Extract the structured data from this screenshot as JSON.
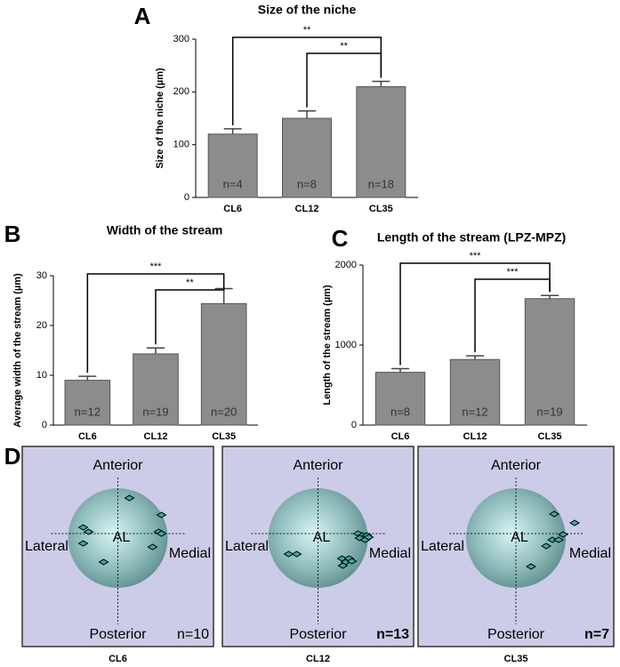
{
  "chart_data": [
    {
      "type": "bar",
      "panel": "A",
      "title": "Size of the niche",
      "y_label": "Size of the niche (µm)",
      "categories": [
        "CL6",
        "CL12",
        "CL35"
      ],
      "values": [
        120,
        150,
        210
      ],
      "errors": [
        10,
        14,
        10
      ],
      "bar_labels": [
        "n=4",
        "n=8",
        "n=18"
      ],
      "significance": [
        "**",
        "**"
      ],
      "color": "#8c8c8c",
      "ylim": [
        0,
        300
      ],
      "yticks": [
        0,
        100,
        200,
        300
      ]
    },
    {
      "type": "bar",
      "panel": "B",
      "title": "Width of the stream",
      "y_label": "Average width of the stream (µm)",
      "categories": [
        "CL6",
        "CL12",
        "CL35"
      ],
      "values": [
        9,
        14.3,
        24.4
      ],
      "errors": [
        0.8,
        1.2,
        3.0
      ],
      "bar_labels": [
        "n=12",
        "n=19",
        "n=20"
      ],
      "significance": [
        "***",
        "**"
      ],
      "color": "#8c8c8c",
      "ylim": [
        0,
        30
      ],
      "yticks": [
        0,
        10,
        20,
        30
      ]
    },
    {
      "type": "bar",
      "panel": "C",
      "title": "Length of the stream (LPZ-MPZ)",
      "y_label": "Length of the stream (µm)",
      "categories": [
        "CL6",
        "CL12",
        "CL35"
      ],
      "values": [
        660,
        820,
        1580
      ],
      "errors": [
        45,
        45,
        40
      ],
      "bar_labels": [
        "n=8",
        "n=12",
        "n=19"
      ],
      "significance": [
        "***",
        "***"
      ],
      "color": "#8c8c8c",
      "ylim": [
        0,
        2000
      ],
      "yticks": [
        0,
        1000,
        2000
      ]
    }
  ],
  "panel_d": {
    "panel": "D",
    "boxes": [
      {
        "caption": "CL6",
        "n": "n=10",
        "anterior": "Anterior",
        "posterior": "Posterior",
        "lateral": "Lateral",
        "medial": "Medial",
        "center": "AL"
      },
      {
        "caption": "CL12",
        "n": "n=13",
        "anterior": "Anterior",
        "posterior": "Posterior",
        "lateral": "Lateral",
        "medial": "Medial",
        "center": "AL"
      },
      {
        "caption": "CL35",
        "n": "n=7",
        "anterior": "Anterior",
        "posterior": "Posterior",
        "lateral": "Lateral",
        "medial": "Medial",
        "center": "AL"
      }
    ]
  }
}
